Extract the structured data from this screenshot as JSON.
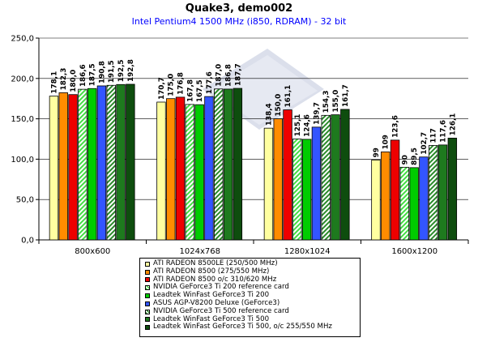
{
  "chart_data": {
    "type": "bar",
    "title": "Quake3, demo002",
    "subtitle": "Intel Pentium4 1500 MHz (i850, RDRAM) - 32 bit",
    "xlabel": "",
    "ylabel": "",
    "ylim": [
      0,
      250
    ],
    "yticks": [
      "0,0",
      "50,0",
      "100,0",
      "150,0",
      "200,0",
      "250,0"
    ],
    "grid": true,
    "legend_position": "bottom",
    "categories": [
      "800x600",
      "1024x768",
      "1280x1024",
      "1600x1200"
    ],
    "series": [
      {
        "name": "ATI RADEON 8500LE (250/500 MHz)",
        "color": "#ffffa0",
        "pattern": "solid",
        "values": [
          178.1,
          170.7,
          138.4,
          99
        ],
        "labels": [
          "178,1",
          "170,7",
          "138,4",
          "99"
        ]
      },
      {
        "name": "ATI RADEON 8500 (275/550 MHz)",
        "color": "#ff8c00",
        "pattern": "solid",
        "values": [
          182.3,
          175.0,
          150.0,
          109
        ],
        "labels": [
          "182,3",
          "175,0",
          "150,0",
          "109"
        ]
      },
      {
        "name": "ATI RADEON 8500 o/c 310/620 MHz",
        "color": "#ee0000",
        "pattern": "solid",
        "values": [
          180.0,
          176.8,
          161.1,
          123.6
        ],
        "labels": [
          "180,0",
          "176,8",
          "161,1",
          "123,6"
        ]
      },
      {
        "name": "NVIDIA GeForce3 Ti 200 reference card",
        "color": "#44dd44",
        "pattern": "stripe",
        "values": [
          186.6,
          167.8,
          125.1,
          90
        ],
        "labels": [
          "186,6",
          "167,8",
          "125,1",
          "90"
        ]
      },
      {
        "name": "Leadtek WinFast GeForce3 Ti 200",
        "color": "#00cc00",
        "pattern": "solid",
        "values": [
          187.5,
          167.5,
          124.6,
          89.5
        ],
        "labels": [
          "187,5",
          "167,5",
          "124,6",
          "89,5"
        ]
      },
      {
        "name": "ASUS AGP-V8200 Deluxe (GeForce3)",
        "color": "#3355ff",
        "pattern": "solid",
        "values": [
          190.8,
          177.6,
          139.7,
          102.7
        ],
        "labels": [
          "190,8",
          "177,6",
          "139,7",
          "102,7"
        ]
      },
      {
        "name": "NVIDIA GeForce3 Ti 500 reference card",
        "color": "#2a8a2a",
        "pattern": "stripe",
        "values": [
          191.5,
          187.0,
          154.3,
          117
        ],
        "labels": [
          "191,5",
          "187,0",
          "154,3",
          "117"
        ]
      },
      {
        "name": "Leadtek WinFast GeForce3 Ti 500",
        "color": "#1e7a1e",
        "pattern": "solid",
        "values": [
          192.5,
          186.8,
          155.0,
          117.6
        ],
        "labels": [
          "192,5",
          "186,8",
          "155,0",
          "117,6"
        ]
      },
      {
        "name": "Leadtek WinFast GeForce3 Ti 500, o/c 255/550 MHz",
        "color": "#0e4d0e",
        "pattern": "solid",
        "values": [
          192.8,
          187.7,
          161.7,
          126.1
        ],
        "labels": [
          "192,8",
          "187,7",
          "161,7",
          "126,1"
        ]
      }
    ]
  }
}
